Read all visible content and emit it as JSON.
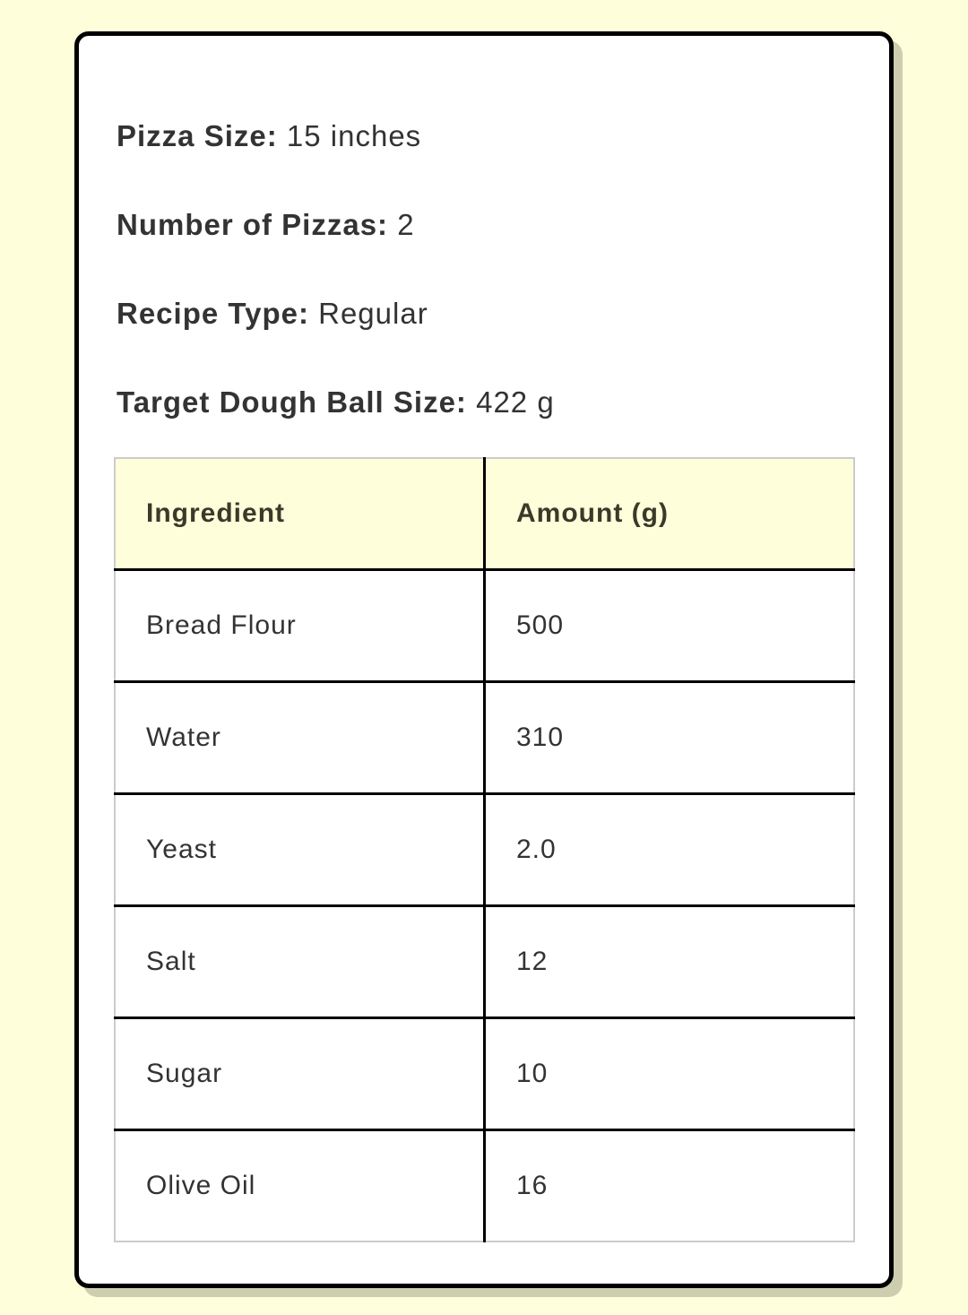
{
  "info": [
    {
      "label": "Pizza Size:",
      "value": "15 inches"
    },
    {
      "label": "Number of Pizzas:",
      "value": "2"
    },
    {
      "label": "Recipe Type:",
      "value": "Regular"
    },
    {
      "label": "Target Dough Ball Size:",
      "value": "422 g"
    }
  ],
  "table": {
    "headers": [
      "Ingredient",
      "Amount (g)"
    ],
    "rows": [
      [
        "Bread Flour",
        "500"
      ],
      [
        "Water",
        "310"
      ],
      [
        "Yeast",
        "2.0"
      ],
      [
        "Salt",
        "12"
      ],
      [
        "Sugar",
        "10"
      ],
      [
        "Olive Oil",
        "16"
      ]
    ]
  },
  "colors": {
    "background": "#fffedb",
    "header_bg": "#fffedb",
    "card_border": "#000000",
    "shadow": "#cdcdb0"
  }
}
